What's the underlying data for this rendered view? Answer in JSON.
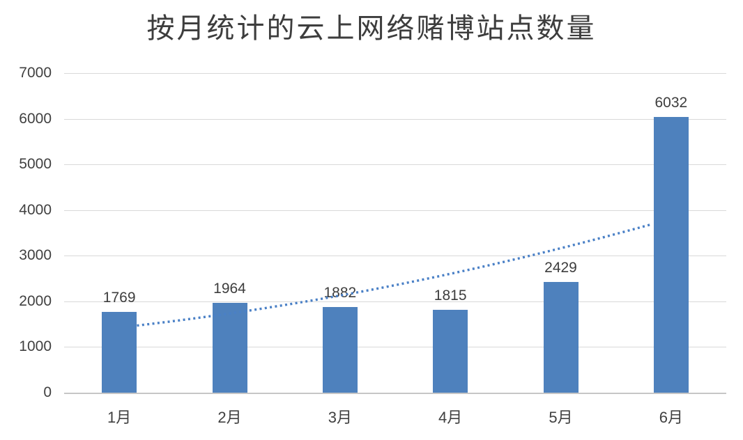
{
  "chart_data": {
    "type": "bar",
    "title": "按月统计的云上网络赌博站点数量",
    "categories": [
      "1月",
      "2月",
      "3月",
      "4月",
      "5月",
      "6月"
    ],
    "values": [
      1769,
      1964,
      1882,
      1815,
      2429,
      6032
    ],
    "value_labels": [
      "1769",
      "1964",
      "1882",
      "1815",
      "2429",
      "6032"
    ],
    "xlabel": "",
    "ylabel": "",
    "ylim": [
      0,
      7000
    ],
    "yticks": [
      0,
      1000,
      2000,
      3000,
      4000,
      5000,
      6000,
      7000
    ],
    "grid": "horizontal",
    "legend": "none",
    "bar_color": "#4e81bd",
    "gridline_color": "#d9d9d9",
    "axis_text_color": "#404040",
    "trendline": {
      "style": "dotted",
      "color": "#4a80c6",
      "points": [
        {
          "fx": 0.11,
          "value": 1470
        },
        {
          "fx": 0.498,
          "value": 2350
        },
        {
          "fx": 0.885,
          "value": 3680
        }
      ]
    }
  }
}
